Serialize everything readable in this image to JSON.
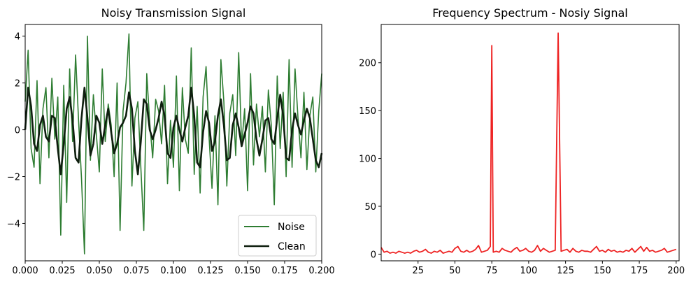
{
  "chart_data": [
    {
      "type": "line",
      "title": "Noisy Transmission Signal",
      "xlabel": "",
      "ylabel": "",
      "xlim": [
        0.0,
        0.2
      ],
      "ylim": [
        -5.6,
        4.5
      ],
      "x_ticks": [
        0.0,
        0.025,
        0.05,
        0.075,
        0.1,
        0.125,
        0.15,
        0.175,
        0.2
      ],
      "x_tick_labels": [
        "0.000",
        "0.025",
        "0.050",
        "0.075",
        "0.100",
        "0.125",
        "0.150",
        "0.175",
        "0.200"
      ],
      "y_ticks": [
        4,
        2,
        0,
        -2,
        -4
      ],
      "y_tick_labels": [
        "4",
        "2",
        "0",
        "−2",
        "−4"
      ],
      "grid": false,
      "legend_position": "lower-right",
      "series": [
        {
          "name": "Noise",
          "color": "#2e7d32",
          "x": [
            0.0,
            0.002,
            0.004,
            0.006,
            0.008,
            0.01,
            0.012,
            0.014,
            0.016,
            0.018,
            0.02,
            0.022,
            0.024,
            0.026,
            0.028,
            0.03,
            0.032,
            0.034,
            0.036,
            0.038,
            0.04,
            0.042,
            0.044,
            0.046,
            0.048,
            0.05,
            0.052,
            0.054,
            0.056,
            0.058,
            0.06,
            0.062,
            0.064,
            0.066,
            0.068,
            0.07,
            0.072,
            0.074,
            0.076,
            0.078,
            0.08,
            0.082,
            0.084,
            0.086,
            0.088,
            0.09,
            0.092,
            0.094,
            0.096,
            0.098,
            0.1,
            0.102,
            0.104,
            0.106,
            0.108,
            0.11,
            0.112,
            0.114,
            0.116,
            0.118,
            0.12,
            0.122,
            0.124,
            0.126,
            0.128,
            0.13,
            0.132,
            0.134,
            0.136,
            0.138,
            0.14,
            0.142,
            0.144,
            0.146,
            0.148,
            0.15,
            0.152,
            0.154,
            0.156,
            0.158,
            0.16,
            0.162,
            0.164,
            0.166,
            0.168,
            0.17,
            0.172,
            0.174,
            0.176,
            0.178,
            0.18,
            0.182,
            0.184,
            0.186,
            0.188,
            0.19,
            0.192,
            0.194,
            0.196,
            0.198,
            0.2
          ],
          "y": [
            1.2,
            3.4,
            -0.8,
            -1.6,
            2.1,
            -2.3,
            0.9,
            1.8,
            -1.2,
            2.2,
            -0.4,
            1.4,
            -4.5,
            1.9,
            -3.1,
            2.6,
            -0.5,
            3.2,
            0.4,
            -2.1,
            -5.3,
            4.0,
            -1.3,
            1.5,
            -0.2,
            -1.8,
            2.6,
            -0.5,
            1.1,
            0.2,
            -2.0,
            2.0,
            -4.3,
            0.8,
            2.0,
            4.1,
            -2.4,
            0.5,
            1.2,
            -1.6,
            -4.3,
            2.4,
            0.3,
            -1.2,
            1.3,
            0.8,
            -0.6,
            1.9,
            -2.3,
            0.4,
            -1.6,
            2.3,
            -2.6,
            1.8,
            -0.4,
            -1.0,
            3.5,
            -1.9,
            1.0,
            -2.7,
            1.4,
            2.7,
            -0.3,
            -2.5,
            0.6,
            -3.2,
            3.0,
            1.2,
            -2.4,
            0.7,
            1.5,
            -1.1,
            3.3,
            -0.7,
            0.9,
            -2.6,
            2.4,
            -1.5,
            1.1,
            -0.3,
            1.0,
            -1.8,
            1.7,
            0.2,
            -3.2,
            2.3,
            -0.8,
            1.6,
            -2.0,
            3.0,
            -1.6,
            2.6,
            0.5,
            -1.2,
            1.6,
            -1.7,
            0.6,
            1.4,
            -1.8,
            0.8,
            2.4
          ]
        },
        {
          "name": "Clean",
          "color": "#0f1f0f",
          "x": [
            0.0,
            0.002,
            0.004,
            0.006,
            0.008,
            0.01,
            0.012,
            0.014,
            0.016,
            0.018,
            0.02,
            0.022,
            0.024,
            0.026,
            0.028,
            0.03,
            0.032,
            0.034,
            0.036,
            0.038,
            0.04,
            0.042,
            0.044,
            0.046,
            0.048,
            0.05,
            0.052,
            0.054,
            0.056,
            0.058,
            0.06,
            0.062,
            0.064,
            0.066,
            0.068,
            0.07,
            0.072,
            0.074,
            0.076,
            0.078,
            0.08,
            0.082,
            0.084,
            0.086,
            0.088,
            0.09,
            0.092,
            0.094,
            0.096,
            0.098,
            0.1,
            0.102,
            0.104,
            0.106,
            0.108,
            0.11,
            0.112,
            0.114,
            0.116,
            0.118,
            0.12,
            0.122,
            0.124,
            0.126,
            0.128,
            0.13,
            0.132,
            0.134,
            0.136,
            0.138,
            0.14,
            0.142,
            0.144,
            0.146,
            0.148,
            0.15,
            0.152,
            0.154,
            0.156,
            0.158,
            0.16,
            0.162,
            0.164,
            0.166,
            0.168,
            0.17,
            0.172,
            0.174,
            0.176,
            0.178,
            0.18,
            0.182,
            0.184,
            0.186,
            0.188,
            0.19,
            0.192,
            0.194,
            0.196,
            0.198,
            0.2
          ],
          "y": [
            0.0,
            1.8,
            1.0,
            -0.6,
            -0.9,
            0.2,
            0.6,
            -0.3,
            -0.5,
            0.6,
            0.5,
            -0.8,
            -1.9,
            -0.6,
            0.9,
            1.4,
            0.4,
            -1.2,
            -1.4,
            0.5,
            1.8,
            0.5,
            -1.1,
            -0.6,
            0.6,
            0.3,
            -0.6,
            0.2,
            0.9,
            -0.1,
            -1.0,
            -0.6,
            0.1,
            0.3,
            0.6,
            1.6,
            0.9,
            -0.9,
            -1.9,
            -0.5,
            1.3,
            1.1,
            0.0,
            -0.4,
            0.0,
            0.5,
            1.2,
            0.6,
            -1.0,
            -1.2,
            0.1,
            0.6,
            0.0,
            -0.5,
            0.1,
            0.6,
            1.8,
            0.6,
            -1.4,
            -1.6,
            -0.1,
            0.8,
            0.3,
            -0.9,
            -0.5,
            0.6,
            1.3,
            0.2,
            -1.3,
            -1.2,
            0.2,
            0.7,
            0.1,
            -0.7,
            -0.2,
            0.3,
            1.0,
            0.7,
            -0.4,
            -1.1,
            -0.4,
            0.4,
            0.5,
            -0.4,
            -0.6,
            0.5,
            1.5,
            0.6,
            -1.2,
            -1.3,
            0.0,
            0.7,
            0.2,
            -0.2,
            0.4,
            0.9,
            0.5,
            -0.4,
            -1.3,
            -1.6,
            -1.0
          ]
        }
      ]
    },
    {
      "type": "line",
      "title": "Frequency Spectrum - Nosiy Signal",
      "xlabel": "",
      "ylabel": "",
      "xlim": [
        0,
        202
      ],
      "ylim": [
        -7,
        240
      ],
      "x_ticks": [
        25,
        50,
        75,
        100,
        125,
        150,
        175,
        200
      ],
      "x_tick_labels": [
        "25",
        "50",
        "75",
        "100",
        "125",
        "150",
        "175",
        "200"
      ],
      "y_ticks": [
        0,
        50,
        100,
        150,
        200
      ],
      "y_tick_labels": [
        "0",
        "50",
        "100",
        "150",
        "200"
      ],
      "grid": false,
      "series": [
        {
          "color": "#ee2222",
          "x": [
            0,
            2,
            4,
            6,
            8,
            10,
            12,
            14,
            16,
            18,
            20,
            22,
            24,
            26,
            28,
            30,
            32,
            34,
            36,
            38,
            40,
            42,
            44,
            46,
            48,
            50,
            52,
            54,
            56,
            58,
            60,
            62,
            64,
            66,
            68,
            70,
            72,
            74,
            75,
            76,
            78,
            80,
            82,
            84,
            86,
            88,
            90,
            92,
            94,
            96,
            98,
            100,
            102,
            104,
            106,
            108,
            110,
            112,
            114,
            116,
            118,
            120,
            122,
            124,
            126,
            128,
            130,
            132,
            134,
            136,
            138,
            140,
            142,
            144,
            146,
            148,
            150,
            152,
            154,
            156,
            158,
            160,
            162,
            164,
            166,
            168,
            170,
            172,
            174,
            176,
            178,
            180,
            182,
            184,
            186,
            188,
            190,
            192,
            194,
            196,
            198,
            200
          ],
          "y": [
            7,
            2,
            3,
            1,
            2,
            1,
            3,
            2,
            1,
            2,
            1,
            3,
            4,
            2,
            3,
            5,
            2,
            1,
            3,
            2,
            4,
            1,
            2,
            3,
            2,
            6,
            8,
            3,
            2,
            4,
            2,
            3,
            5,
            9,
            2,
            3,
            4,
            8,
            218,
            2,
            3,
            2,
            6,
            4,
            3,
            2,
            5,
            7,
            3,
            4,
            6,
            3,
            2,
            4,
            9,
            3,
            6,
            4,
            2,
            3,
            4,
            231,
            3,
            4,
            5,
            2,
            6,
            3,
            2,
            4,
            3,
            3,
            2,
            5,
            8,
            3,
            4,
            2,
            5,
            3,
            4,
            2,
            3,
            2,
            4,
            3,
            6,
            2,
            5,
            8,
            3,
            7,
            3,
            4,
            2,
            3,
            4,
            6,
            2,
            3,
            4,
            5
          ]
        }
      ]
    }
  ]
}
